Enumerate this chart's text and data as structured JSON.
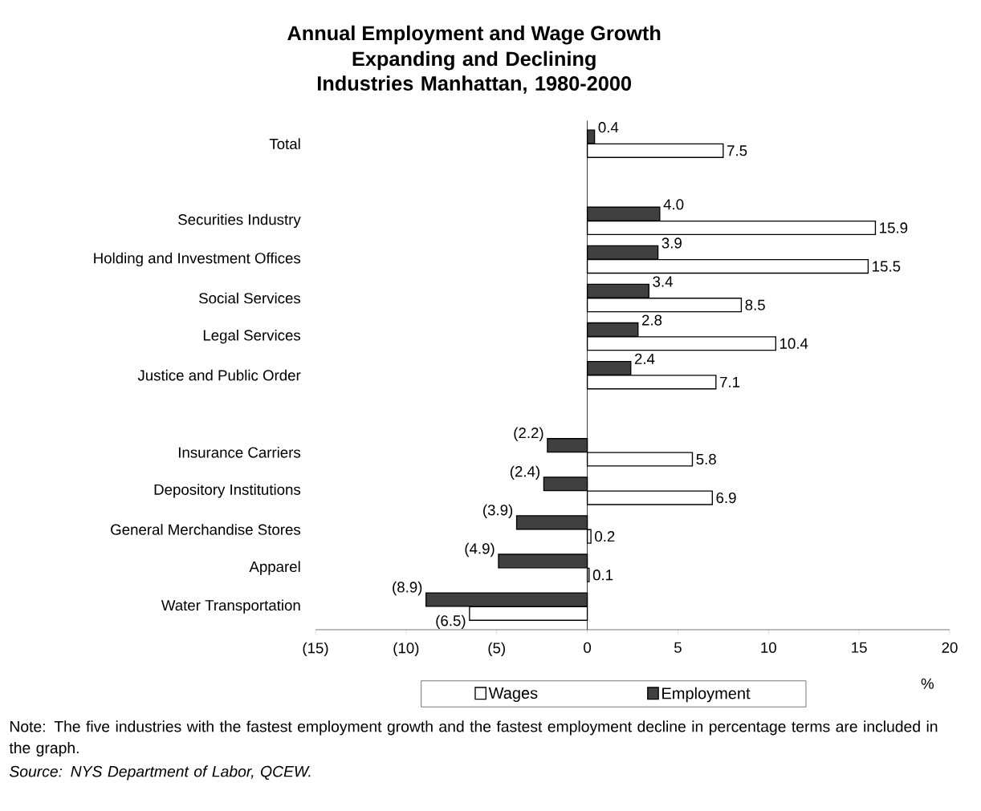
{
  "chart_data": {
    "type": "bar",
    "orientation": "horizontal",
    "title": "Annual Employment and Wage Growth",
    "subtitle": "Expanding and Declining Industries Manhattan, 1980-2000",
    "categories": [
      "Total",
      null,
      "Securities Industry",
      "Holding and Investment Offices",
      "Social Services",
      "Legal Services",
      "Justice and Public Order",
      null,
      "Insurance Carriers",
      "Depository Institutions",
      "General Merchandise Stores",
      "Apparel",
      "Water Transportation"
    ],
    "series": [
      {
        "name": "Wages",
        "color": "#ffffff",
        "values": [
          7.5,
          null,
          15.9,
          15.5,
          8.5,
          10.4,
          7.1,
          null,
          5.8,
          6.9,
          0.2,
          0.1,
          -6.5
        ],
        "value_labels": [
          "7.5",
          null,
          "15.9",
          "15.5",
          "8.5",
          "10.4",
          "7.1",
          null,
          "5.8",
          "6.9",
          "0.2",
          "0.1",
          "(6.5)"
        ]
      },
      {
        "name": "Employment",
        "color": "#404040",
        "values": [
          0.4,
          null,
          4.0,
          3.9,
          3.4,
          2.8,
          2.4,
          null,
          -2.2,
          -2.4,
          -3.9,
          -4.9,
          -8.9
        ],
        "value_labels": [
          "0.4",
          null,
          "4.0",
          "3.9",
          "3.4",
          "2.8",
          "2.4",
          null,
          "(2.2)",
          "(2.4)",
          "(3.9)",
          "(4.9)",
          "(8.9)"
        ]
      }
    ],
    "xlim": [
      -15,
      20
    ],
    "xticks": [
      {
        "value": -15,
        "label": "(15)"
      },
      {
        "value": -10,
        "label": "(10)"
      },
      {
        "value": -5,
        "label": "(5)"
      },
      0,
      5,
      10,
      15,
      20
    ],
    "xlabel": "%",
    "legend": "bottom",
    "annotations": [
      "Note: The five industries with the fastest employment growth and the fastest employment decline in percentage terms are included in the graph.",
      "*Source: NYS Department of Labor, QCEW.*"
    ]
  }
}
